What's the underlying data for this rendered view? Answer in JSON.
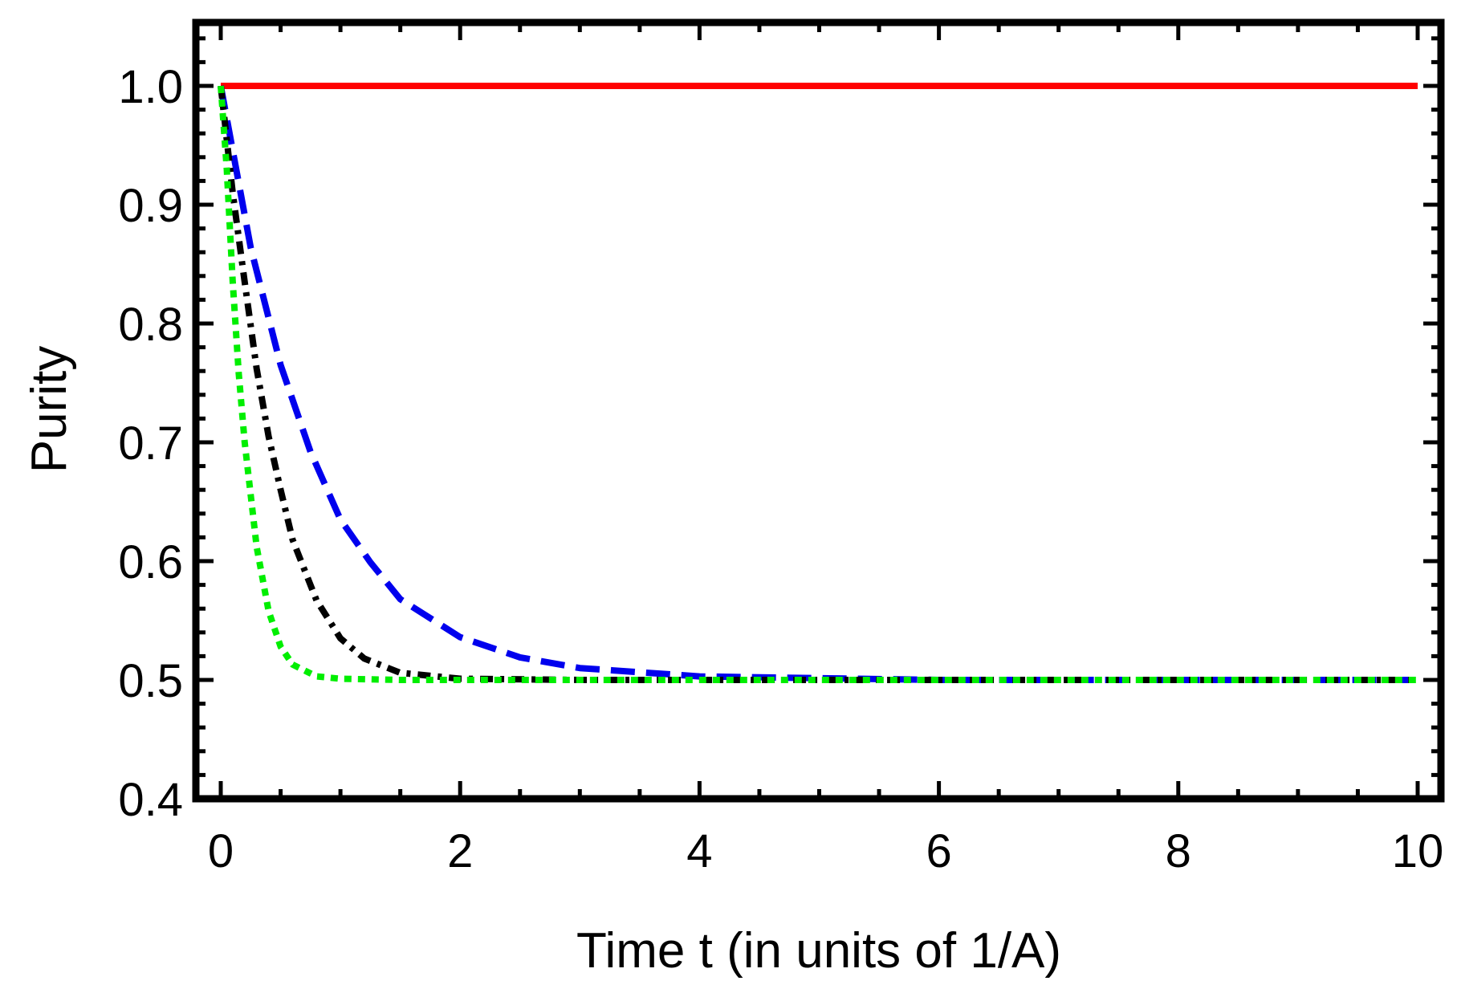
{
  "chart_data": {
    "type": "line",
    "title": "",
    "xlabel": "Time t (in units of 1/A)",
    "ylabel": "Purity",
    "xlim": [
      -0.2,
      10.2
    ],
    "ylim": [
      0.4,
      1.05
    ],
    "x_ticks": [
      "0",
      "2",
      "4",
      "6",
      "8",
      "10"
    ],
    "x_tick_values": [
      0,
      2,
      4,
      6,
      8,
      10
    ],
    "y_ticks": [
      "0.4",
      "0.5",
      "0.6",
      "0.7",
      "0.8",
      "0.9",
      "1.0"
    ],
    "y_tick_values": [
      0.4,
      0.5,
      0.6,
      0.7,
      0.8,
      0.9,
      1.0
    ],
    "grid": false,
    "legend": "none",
    "series": [
      {
        "style": "solid",
        "color": "#ff0000",
        "x": [
          0,
          10
        ],
        "y": [
          1.0,
          1.0
        ]
      },
      {
        "style": "dashed",
        "color": "#0000ee",
        "x": [
          0,
          0.25,
          0.5,
          0.75,
          1.0,
          1.25,
          1.5,
          2.0,
          2.5,
          3.0,
          4.0,
          6.0,
          8.0,
          10.0
        ],
        "y": [
          1.0,
          0.864,
          0.765,
          0.692,
          0.635,
          0.599,
          0.568,
          0.536,
          0.519,
          0.51,
          0.503,
          0.5,
          0.5,
          0.5
        ]
      },
      {
        "style": "dash-dot",
        "color": "#000000",
        "x": [
          0,
          0.1,
          0.2,
          0.3,
          0.4,
          0.5,
          0.6,
          0.8,
          1.0,
          1.2,
          1.5,
          2.0,
          3.0,
          10.0
        ],
        "y": [
          1.0,
          0.91,
          0.835,
          0.762,
          0.705,
          0.66,
          0.618,
          0.567,
          0.535,
          0.518,
          0.506,
          0.501,
          0.5,
          0.5
        ]
      },
      {
        "style": "dotted",
        "color": "#00ee00",
        "x": [
          0,
          0.05,
          0.1,
          0.15,
          0.2,
          0.3,
          0.4,
          0.5,
          0.6,
          0.8,
          1.0,
          1.5,
          2.0,
          10.0
        ],
        "y": [
          1.0,
          0.93,
          0.835,
          0.758,
          0.7,
          0.612,
          0.558,
          0.528,
          0.513,
          0.503,
          0.501,
          0.5,
          0.5,
          0.5
        ]
      }
    ]
  }
}
